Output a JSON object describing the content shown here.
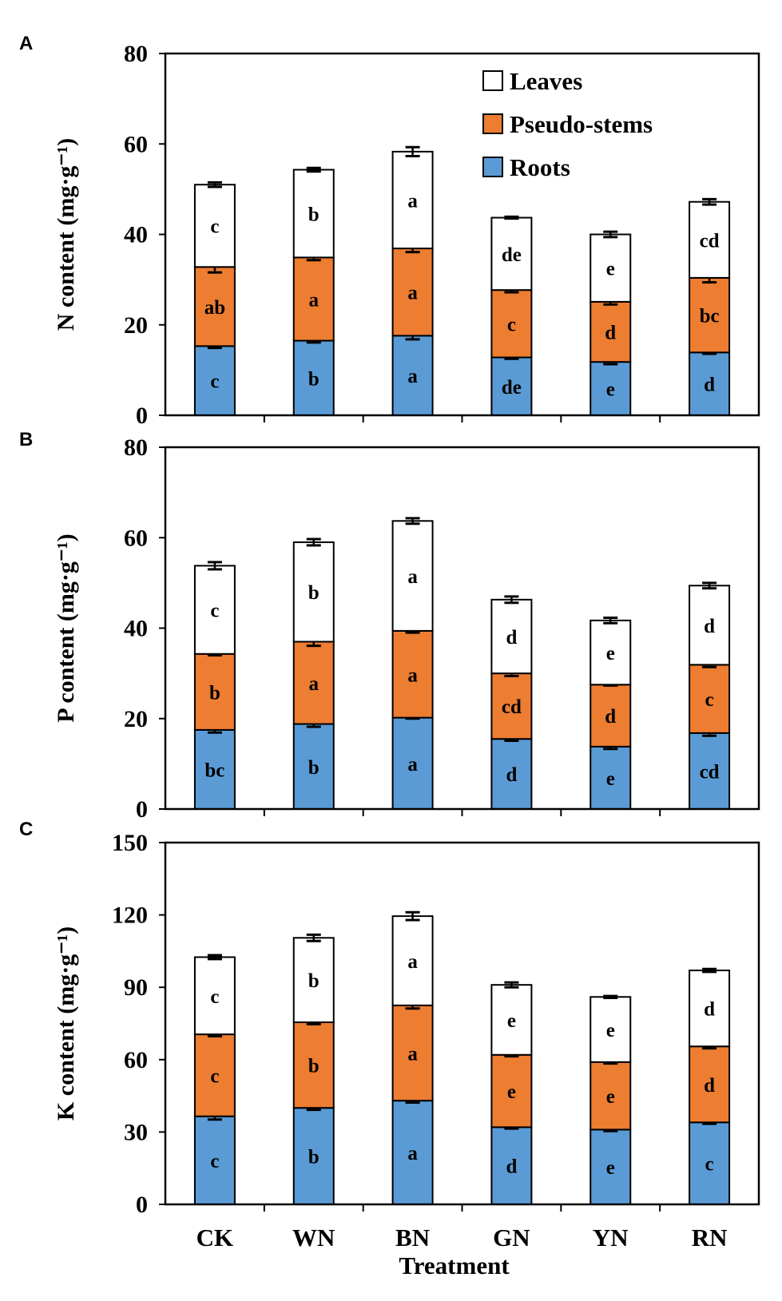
{
  "chart_data": [
    {
      "type": "bar",
      "stacked": true,
      "panel": "A",
      "ylabel": "N content (mg·g⁻¹)",
      "ylim": [
        0,
        80
      ],
      "yticks": [
        0,
        20,
        40,
        60,
        80
      ],
      "categories": [
        "CK",
        "WN",
        "BN",
        "GN",
        "YN",
        "RN"
      ],
      "series": [
        {
          "name": "Roots",
          "color": "#5b9bd5",
          "values": [
            15.3,
            16.5,
            17.6,
            12.8,
            11.8,
            13.9
          ],
          "errors": [
            0.4,
            0.4,
            0.8,
            0.3,
            0.5,
            0.3
          ],
          "letters": [
            "c",
            "b",
            "a",
            "de",
            "e",
            "d"
          ]
        },
        {
          "name": "Pseudo-stems",
          "color": "#ed7d31",
          "values": [
            17.5,
            18.4,
            19.3,
            14.9,
            13.3,
            16.5
          ],
          "errors": [
            1.2,
            0.6,
            0.8,
            0.5,
            0.6,
            1.0
          ],
          "letters": [
            "ab",
            "a",
            "a",
            "c",
            "d",
            "bc"
          ]
        },
        {
          "name": "Leaves",
          "color": "#ffffff",
          "values": [
            18.2,
            19.4,
            21.4,
            16.0,
            14.9,
            16.8
          ],
          "errors": [
            0.5,
            0.4,
            1.0,
            0.2,
            0.6,
            0.6
          ],
          "letters": [
            "c",
            "b",
            "a",
            "de",
            "e",
            "cd"
          ]
        }
      ]
    },
    {
      "type": "bar",
      "stacked": true,
      "panel": "B",
      "ylabel": "P content (mg·g⁻¹)",
      "ylim": [
        0,
        80
      ],
      "yticks": [
        0,
        20,
        40,
        60,
        80
      ],
      "categories": [
        "CK",
        "WN",
        "BN",
        "GN",
        "YN",
        "RN"
      ],
      "series": [
        {
          "name": "Roots",
          "color": "#5b9bd5",
          "values": [
            17.5,
            18.8,
            20.2,
            15.5,
            13.8,
            16.8
          ],
          "errors": [
            0.6,
            0.6,
            0.2,
            0.4,
            0.5,
            0.6
          ],
          "letters": [
            "bc",
            "b",
            "a",
            "d",
            "e",
            "cd"
          ]
        },
        {
          "name": "Pseudo-stems",
          "color": "#ed7d31",
          "values": [
            16.8,
            18.2,
            19.2,
            14.5,
            13.7,
            15.1
          ],
          "errors": [
            0.3,
            0.9,
            0.4,
            0.6,
            0.2,
            0.5
          ],
          "letters": [
            "b",
            "a",
            "a",
            "cd",
            "d",
            "c"
          ]
        },
        {
          "name": "Leaves",
          "color": "#ffffff",
          "values": [
            19.5,
            22.0,
            24.3,
            16.3,
            14.2,
            17.5
          ],
          "errors": [
            0.8,
            0.7,
            0.6,
            0.7,
            0.6,
            0.6
          ],
          "letters": [
            "c",
            "b",
            "a",
            "d",
            "e",
            "d"
          ]
        }
      ]
    },
    {
      "type": "bar",
      "stacked": true,
      "panel": "C",
      "ylabel": "K content (mg·g⁻¹)",
      "ylim": [
        0,
        150
      ],
      "yticks": [
        0,
        30,
        60,
        90,
        120,
        150
      ],
      "categories": [
        "CK",
        "WN",
        "BN",
        "GN",
        "YN",
        "RN"
      ],
      "xlabel": "Treatment",
      "series": [
        {
          "name": "Roots",
          "color": "#5b9bd5",
          "values": [
            36.5,
            40.0,
            43.0,
            32.0,
            31.0,
            34.0
          ],
          "errors": [
            1.3,
            0.8,
            0.8,
            0.6,
            0.6,
            0.6
          ],
          "letters": [
            "c",
            "b",
            "a",
            "d",
            "e",
            "c"
          ]
        },
        {
          "name": "Pseudo-stems",
          "color": "#ed7d31",
          "values": [
            34.0,
            35.5,
            39.5,
            30.0,
            28.0,
            31.5
          ],
          "errors": [
            0.8,
            0.8,
            1.3,
            0.6,
            0.6,
            0.8
          ],
          "letters": [
            "c",
            "b",
            "a",
            "e",
            "e",
            "d"
          ]
        },
        {
          "name": "Leaves",
          "color": "#ffffff",
          "values": [
            32.0,
            35.0,
            37.0,
            29.0,
            27.0,
            31.5
          ],
          "errors": [
            0.8,
            1.3,
            1.6,
            1.0,
            0.4,
            0.6
          ],
          "letters": [
            "c",
            "b",
            "a",
            "e",
            "e",
            "d"
          ]
        }
      ]
    }
  ],
  "legend": {
    "items": [
      "Leaves",
      "Pseudo-stems",
      "Roots"
    ],
    "placement": "top-right of panel A"
  }
}
